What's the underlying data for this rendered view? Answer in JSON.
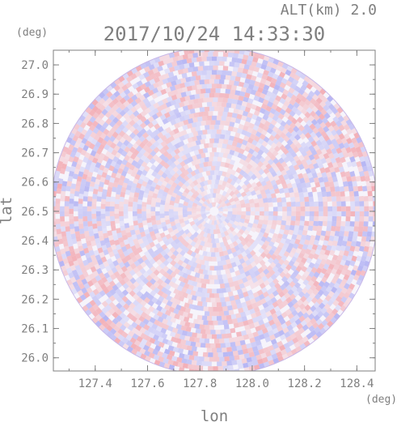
{
  "header": {
    "altitude_label": "ALT(km) 2.0",
    "timestamp": "2017/10/24 14:33:30",
    "y_unit": "(deg)",
    "x_unit": "(deg)"
  },
  "chart_data": {
    "type": "heatmap",
    "title": "2017/10/24 14:33:30",
    "subtitle": "ALT(km) 2.0",
    "xlabel": "lon",
    "ylabel": "lat",
    "x_unit": "(deg)",
    "y_unit": "(deg)",
    "xlim": [
      127.24,
      128.47
    ],
    "ylim": [
      25.955,
      27.05
    ],
    "xticks": [
      127.4,
      127.6,
      127.8,
      128.0,
      128.2,
      128.4
    ],
    "xtick_labels": [
      "127.4",
      "127.6",
      "127.8",
      "128.0",
      "128.2",
      "128.4"
    ],
    "yticks": [
      26.0,
      26.1,
      26.2,
      26.3,
      26.4,
      26.5,
      26.6,
      26.7,
      26.8,
      26.9,
      27.0
    ],
    "ytick_labels": [
      "26.0",
      "26.1",
      "26.2",
      "26.3",
      "26.4",
      "26.5",
      "26.6",
      "26.7",
      "26.8",
      "26.9",
      "27.0"
    ],
    "grid": false,
    "radar_center": {
      "lon": 127.855,
      "lat": 26.5
    },
    "radar_radius_deg": {
      "lon": 0.625,
      "lat": 0.56
    },
    "colors": {
      "positive": "#f2a0a8",
      "negative": "#a8a8f2",
      "axis": "#7f7f7f"
    }
  }
}
